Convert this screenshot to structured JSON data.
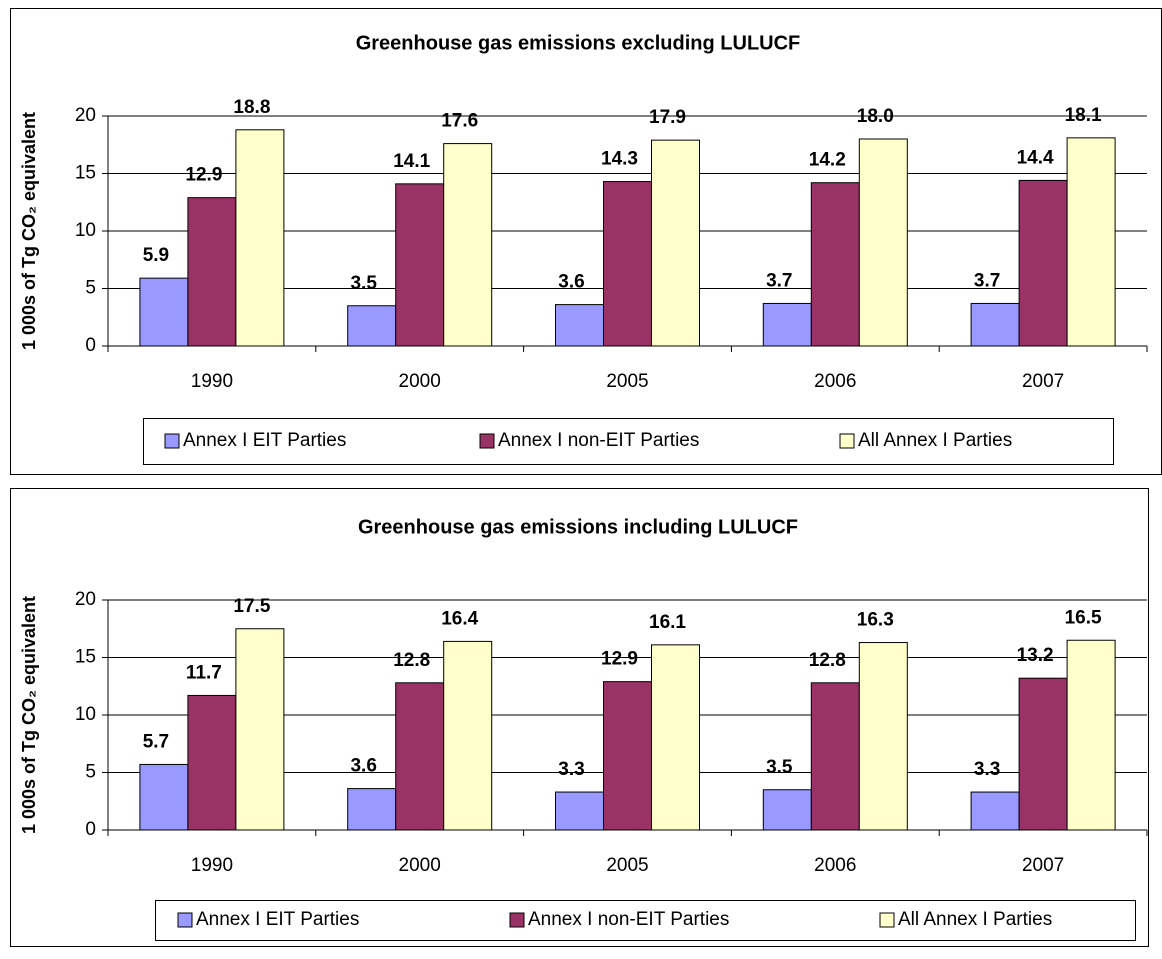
{
  "chart_data": [
    {
      "type": "bar",
      "title": "Greenhouse gas emissions excluding LULUCF",
      "y_label": "1 000s of Tg CO₂ equivalent",
      "categories": [
        "1990",
        "2000",
        "2005",
        "2006",
        "2007"
      ],
      "series": [
        {
          "name": "Annex I EIT Parties",
          "color": "#9999ff",
          "values": [
            5.9,
            3.5,
            3.6,
            3.7,
            3.7
          ],
          "value_labels": [
            "5.9",
            "3.5",
            "3.6",
            "3.7",
            "3.7"
          ]
        },
        {
          "name": "Annex I non-EIT Parties",
          "color": "#993366",
          "values": [
            12.9,
            14.1,
            14.3,
            14.2,
            14.4
          ],
          "value_labels": [
            "12.9",
            "14.1",
            "14.3",
            "14.2",
            "14.4"
          ]
        },
        {
          "name": "All Annex I Parties",
          "color": "#ffffcc",
          "values": [
            18.8,
            17.6,
            17.9,
            18.0,
            18.1
          ],
          "value_labels": [
            "18.8",
            "17.6",
            "17.9",
            "18.0",
            "18.1"
          ]
        }
      ],
      "ylim": [
        0,
        20
      ],
      "yticks": [
        0,
        5,
        10,
        15,
        20
      ],
      "grid": true,
      "legend": "bottom"
    },
    {
      "type": "bar",
      "title": "Greenhouse gas emissions including LULUCF",
      "y_label": "1 000s of Tg CO₂ equivalent",
      "categories": [
        "1990",
        "2000",
        "2005",
        "2006",
        "2007"
      ],
      "series": [
        {
          "name": "Annex I EIT Parties",
          "color": "#9999ff",
          "values": [
            5.7,
            3.6,
            3.3,
            3.5,
            3.3
          ],
          "value_labels": [
            "5.7",
            "3.6",
            "3.3",
            "3.5",
            "3.3"
          ]
        },
        {
          "name": "Annex I non-EIT Parties",
          "color": "#993366",
          "values": [
            11.7,
            12.8,
            12.9,
            12.8,
            13.2
          ],
          "value_labels": [
            "11.7",
            "12.8",
            "12.9",
            "12.8",
            "13.2"
          ]
        },
        {
          "name": "All Annex I Parties",
          "color": "#ffffcc",
          "values": [
            17.5,
            16.4,
            16.1,
            16.3,
            16.5
          ],
          "value_labels": [
            "17.5",
            "16.4",
            "16.1",
            "16.3",
            "16.5"
          ]
        }
      ],
      "ylim": [
        0,
        20
      ],
      "yticks": [
        0,
        5,
        10,
        15,
        20
      ],
      "grid": true,
      "legend": "bottom"
    }
  ]
}
